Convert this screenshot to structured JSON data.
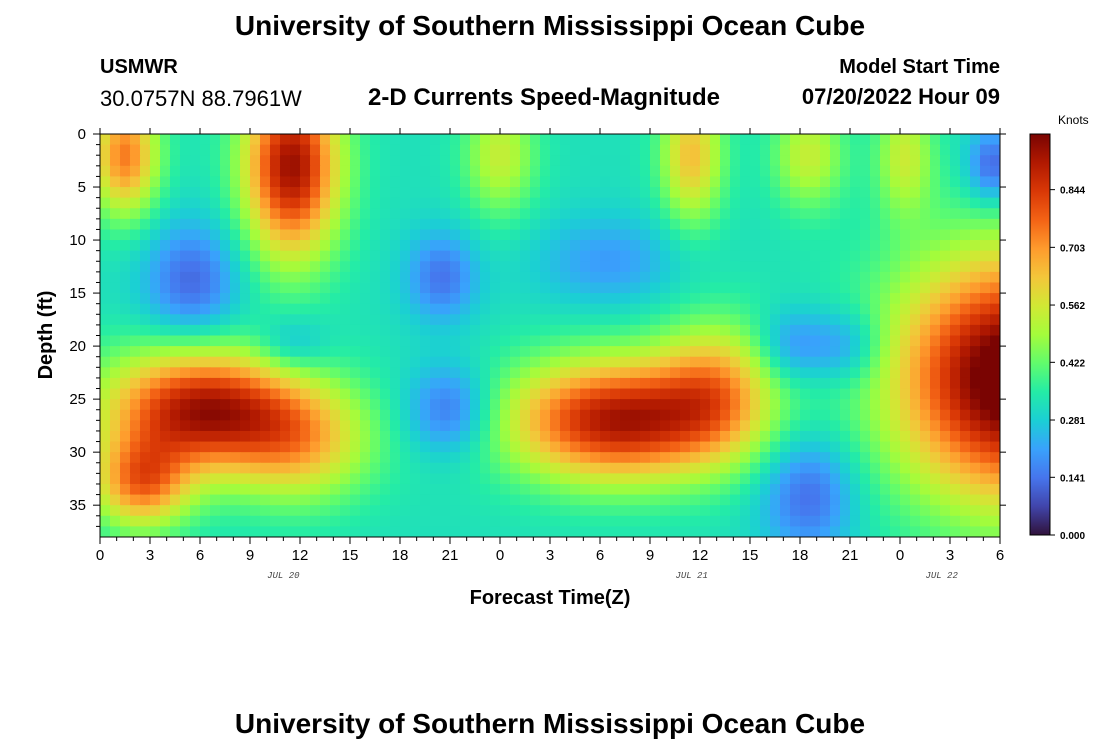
{
  "header": {
    "title": "University of Southern Mississippi Ocean Cube",
    "station": "USMWR",
    "coordinates": "30.0757N  88.7961W",
    "subtitle": "2-D Currents Speed-Magnitude",
    "model_start_label": "Model Start Time",
    "model_start_value": "07/20/2022 Hour 09"
  },
  "footer": {
    "title": "University of Southern Mississippi Ocean Cube"
  },
  "colorbar": {
    "unit": "Knots",
    "ticks": [
      "0.000",
      "0.141",
      "0.281",
      "0.422",
      "0.562",
      "0.703",
      "0.844"
    ],
    "tick_values": [
      0.0,
      0.141,
      0.281,
      0.422,
      0.562,
      0.703,
      0.844
    ],
    "range": [
      0.0,
      0.98
    ],
    "colormap": [
      "#30123b",
      "#4145ab",
      "#4675ed",
      "#39a2fc",
      "#1bcfd4",
      "#24eca6",
      "#61fc6c",
      "#a4fc3b",
      "#d1e834",
      "#f3c63a",
      "#fe9b2d",
      "#f36315",
      "#d93806",
      "#b11901",
      "#7a0402"
    ]
  },
  "chart_data": {
    "type": "heatmap",
    "title": "2-D Currents Speed-Magnitude",
    "xlabel": "Forecast Time(Z)",
    "ylabel": "Depth (ft)",
    "xlim": [
      0,
      54
    ],
    "ylim": [
      38,
      0
    ],
    "x_ticks": [
      "0",
      "3",
      "6",
      "9",
      "12",
      "15",
      "18",
      "21",
      "0",
      "3",
      "6",
      "9",
      "12",
      "15",
      "18",
      "21",
      "0",
      "3",
      "6"
    ],
    "y_ticks": [
      "0",
      "5",
      "10",
      "15",
      "20",
      "25",
      "30",
      "35"
    ],
    "y_tick_values": [
      0,
      5,
      10,
      15,
      20,
      25,
      30,
      35
    ],
    "dates": [
      {
        "label": "JUL 20",
        "x": 11
      },
      {
        "label": "JUL 21",
        "x": 35.5
      },
      {
        "label": "JUL 22",
        "x": 50.5
      }
    ],
    "value_unit": "Knots",
    "base_speed": 0.32,
    "features": [
      {
        "t": 1.5,
        "d": 2,
        "st": 1.4,
        "sd": 4.0,
        "v": 0.42
      },
      {
        "t": 11.5,
        "d": 3,
        "st": 2.0,
        "sd": 6.0,
        "v": 0.62
      },
      {
        "t": 24,
        "d": 2,
        "st": 1.5,
        "sd": 4.0,
        "v": 0.22
      },
      {
        "t": 35.5,
        "d": 2,
        "st": 1.3,
        "sd": 4.5,
        "v": 0.32
      },
      {
        "t": 42.5,
        "d": 2,
        "st": 1.5,
        "sd": 3.5,
        "v": 0.22
      },
      {
        "t": 48.3,
        "d": 2,
        "st": 1.2,
        "sd": 4.0,
        "v": 0.22
      },
      {
        "t": 6,
        "d": 26,
        "st": 4.0,
        "sd": 4.0,
        "v": 0.6
      },
      {
        "t": 2.5,
        "d": 33,
        "st": 2.0,
        "sd": 3.0,
        "v": 0.4
      },
      {
        "t": 12,
        "d": 29,
        "st": 3.0,
        "sd": 4.0,
        "v": 0.3
      },
      {
        "t": 31,
        "d": 27,
        "st": 4.5,
        "sd": 4.0,
        "v": 0.6
      },
      {
        "t": 37,
        "d": 24,
        "st": 2.5,
        "sd": 4.5,
        "v": 0.3
      },
      {
        "t": 55,
        "d": 23,
        "st": 5.0,
        "sd": 8.0,
        "v": 0.75
      },
      {
        "t": 5.5,
        "d": 14,
        "st": 2.0,
        "sd": 4.0,
        "v": -0.2
      },
      {
        "t": 20.5,
        "d": 13.5,
        "st": 1.5,
        "sd": 3.0,
        "v": -0.18
      },
      {
        "t": 21,
        "d": 26,
        "st": 1.8,
        "sd": 3.0,
        "v": -0.2
      },
      {
        "t": 11.5,
        "d": 20,
        "st": 1.5,
        "sd": 2.0,
        "v": -0.12
      },
      {
        "t": 41.5,
        "d": 20,
        "st": 1.5,
        "sd": 2.5,
        "v": -0.15
      },
      {
        "t": 44.8,
        "d": 20,
        "st": 1.5,
        "sd": 2.5,
        "v": -0.15
      },
      {
        "t": 42.5,
        "d": 34,
        "st": 2.0,
        "sd": 4.0,
        "v": -0.2
      },
      {
        "t": 30.5,
        "d": 12,
        "st": 3.0,
        "sd": 3.0,
        "v": -0.12
      },
      {
        "t": 53.5,
        "d": 3,
        "st": 1.0,
        "sd": 2.5,
        "v": -0.22
      }
    ]
  }
}
